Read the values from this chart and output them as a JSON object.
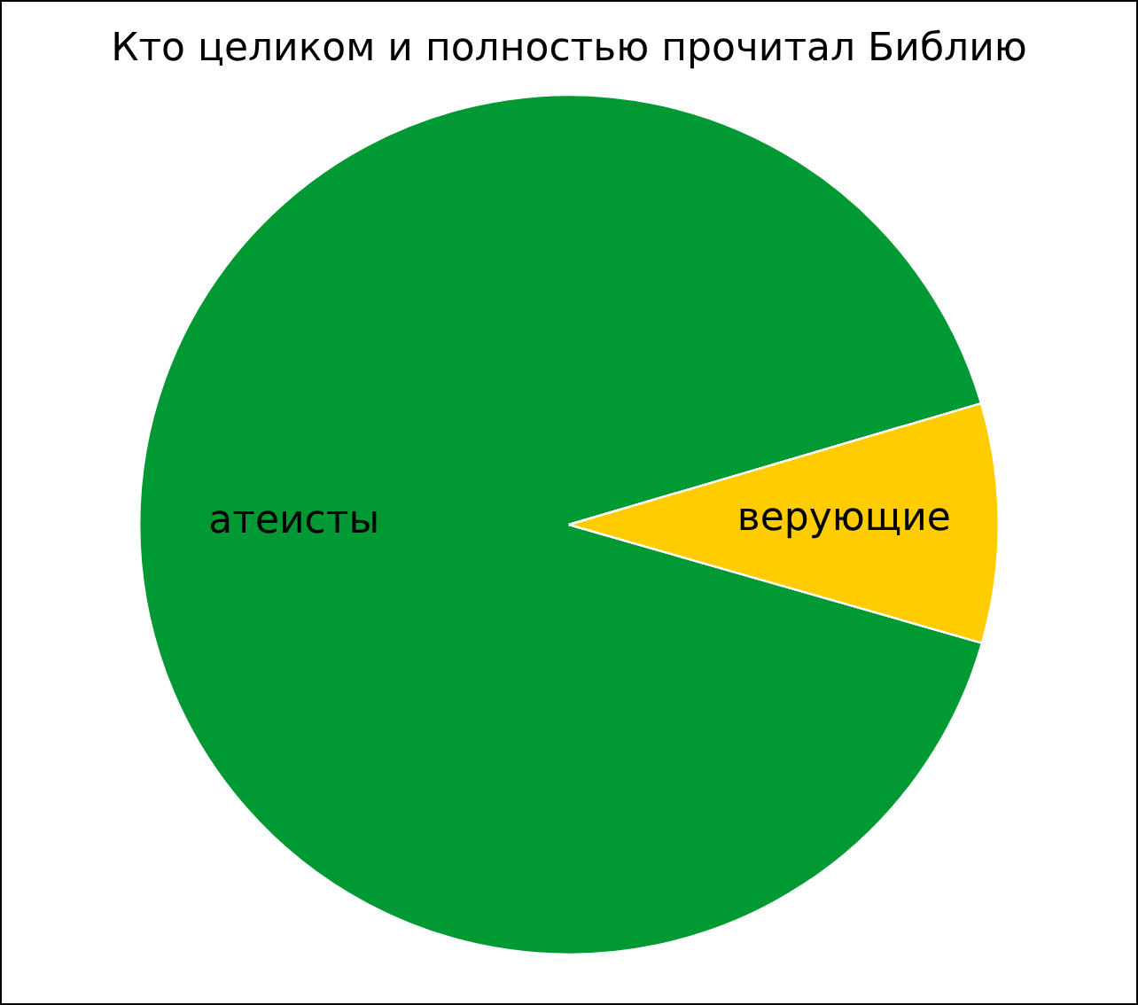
{
  "chart_data": {
    "type": "pie",
    "title": "Кто целиком и полностью прочитал Библию",
    "categories": [
      "атеисты",
      "верующие"
    ],
    "values": [
      91,
      9
    ],
    "colors": [
      "#009933",
      "#ffcc00"
    ],
    "legend": false
  }
}
